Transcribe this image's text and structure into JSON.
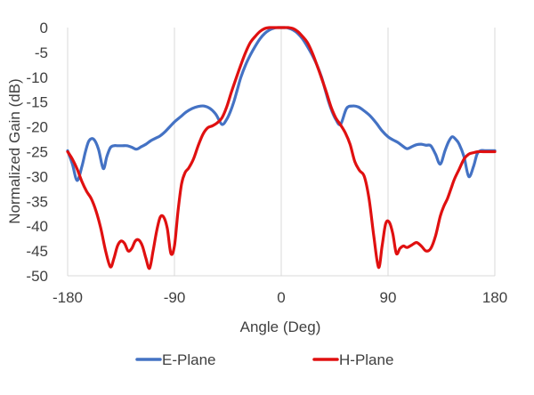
{
  "chart_data": {
    "type": "line",
    "title": "",
    "xlabel": "Angle (Deg)",
    "ylabel": "Normalized Gain (dB)",
    "xlim": [
      -180,
      180
    ],
    "ylim": [
      -50,
      0
    ],
    "xticks": [
      -180,
      -90,
      0,
      90,
      180
    ],
    "yticks": [
      0,
      -5,
      -10,
      -15,
      -20,
      -25,
      -30,
      -35,
      -40,
      -45,
      -50
    ],
    "xtick_labels": [
      "-180",
      "-90",
      "0",
      "90",
      "180"
    ],
    "ytick_labels": [
      "0",
      "-5",
      "-10",
      "-15",
      "-20",
      "-25",
      "-30",
      "-35",
      "-40",
      "-45",
      "-50"
    ],
    "grid": "vertical",
    "legend_position": "bottom",
    "series": [
      {
        "name": "E-Plane",
        "color": "#4472C4",
        "x": [
          -180,
          -176,
          -172,
          -168,
          -165,
          -162,
          -158,
          -154,
          -150,
          -147,
          -144,
          -141,
          -138,
          -134,
          -130,
          -126,
          -122,
          -118,
          -114,
          -110,
          -106,
          -102,
          -98,
          -94,
          -90,
          -85,
          -80,
          -75,
          -70,
          -65,
          -60,
          -55,
          -50,
          -46,
          -43,
          -40,
          -37,
          -34,
          -30,
          -26,
          -22,
          -18,
          -14,
          -10,
          -6,
          -3,
          0,
          3,
          6,
          10,
          14,
          18,
          22,
          26,
          30,
          34,
          37,
          40,
          43,
          46,
          50,
          55,
          60,
          65,
          70,
          75,
          80,
          85,
          90,
          94,
          98,
          102,
          106,
          110,
          114,
          118,
          122,
          126,
          130,
          134,
          138,
          141,
          144,
          147,
          150,
          154,
          158,
          162,
          165,
          168,
          172,
          176,
          180
        ],
        "y": [
          -24.8,
          -27.5,
          -30.8,
          -28,
          -25,
          -22.8,
          -22.5,
          -24.5,
          -28.4,
          -26,
          -24.2,
          -23.8,
          -23.8,
          -23.8,
          -23.8,
          -24.1,
          -24.5,
          -24,
          -23.5,
          -22.8,
          -22.3,
          -21.8,
          -21,
          -20,
          -19,
          -18,
          -17,
          -16.3,
          -15.9,
          -15.8,
          -16.3,
          -17.5,
          -19.5,
          -18.5,
          -17,
          -15,
          -12.5,
          -10,
          -7.5,
          -5.5,
          -3.8,
          -2.3,
          -1.2,
          -0.5,
          -0.1,
          0,
          0,
          0,
          -0.1,
          -0.5,
          -1.2,
          -2.3,
          -3.8,
          -5.5,
          -7.5,
          -10,
          -12.5,
          -15,
          -17,
          -18.5,
          -19.5,
          -16.3,
          -15.8,
          -16,
          -16.8,
          -17.8,
          -19.2,
          -20.8,
          -22,
          -22.6,
          -23.1,
          -23.8,
          -24.4,
          -24,
          -23.6,
          -23.5,
          -23.7,
          -23.8,
          -25.5,
          -27.5,
          -24.8,
          -23,
          -22,
          -22.5,
          -23.5,
          -26,
          -30,
          -28,
          -25.5,
          -24.8,
          -24.8,
          -24.8,
          -24.8
        ]
      },
      {
        "name": "H-Plane",
        "color": "#E01010",
        "x": [
          -180,
          -176,
          -172,
          -168,
          -164,
          -160,
          -156,
          -152,
          -148,
          -144,
          -141,
          -138,
          -135,
          -132,
          -129,
          -126,
          -123,
          -120,
          -117,
          -114,
          -111,
          -108,
          -105,
          -102,
          -99,
          -96,
          -93,
          -90,
          -87,
          -84,
          -81,
          -78,
          -74,
          -70,
          -66,
          -62,
          -58,
          -54,
          -50,
          -46,
          -42,
          -38,
          -34,
          -30,
          -26,
          -22,
          -18,
          -14,
          -10,
          -6,
          -3,
          0,
          3,
          6,
          10,
          14,
          18,
          22,
          26,
          30,
          34,
          38,
          42,
          46,
          50,
          54,
          58,
          62,
          66,
          70,
          74,
          78,
          82,
          85,
          88,
          91,
          94,
          97,
          100,
          103,
          106,
          110,
          114,
          118,
          122,
          126,
          130,
          134,
          137,
          140,
          143,
          146,
          150,
          154,
          158,
          162,
          166,
          170,
          174,
          177,
          180
        ],
        "y": [
          -25,
          -26.5,
          -28.5,
          -31,
          -33,
          -34.5,
          -37,
          -40.5,
          -45,
          -48.2,
          -46.5,
          -44,
          -43,
          -43.5,
          -45,
          -44.5,
          -43,
          -42.8,
          -44,
          -46.5,
          -48.5,
          -45,
          -41,
          -38.2,
          -38.2,
          -40.5,
          -45.5,
          -44,
          -37,
          -31.5,
          -29.2,
          -28.3,
          -26.5,
          -23.8,
          -21.5,
          -20.2,
          -19.8,
          -19.2,
          -18.2,
          -16,
          -13,
          -10.2,
          -7.5,
          -5,
          -3,
          -1.8,
          -0.8,
          -0.2,
          0,
          0,
          0,
          0,
          0,
          0,
          -0.2,
          -0.8,
          -1.8,
          -3,
          -5,
          -7.5,
          -10.2,
          -13,
          -16,
          -18.2,
          -19.6,
          -21.2,
          -23.5,
          -27,
          -28.8,
          -30,
          -34.5,
          -42,
          -48.3,
          -44,
          -39.5,
          -39.2,
          -41.5,
          -45.5,
          -44.5,
          -44,
          -44.3,
          -43.8,
          -43.3,
          -44,
          -45,
          -44.5,
          -42,
          -38,
          -36,
          -34.5,
          -32.5,
          -30.5,
          -28.5,
          -26.5,
          -25.5,
          -25.2,
          -25,
          -25,
          -25,
          -25,
          -25
        ]
      }
    ]
  }
}
